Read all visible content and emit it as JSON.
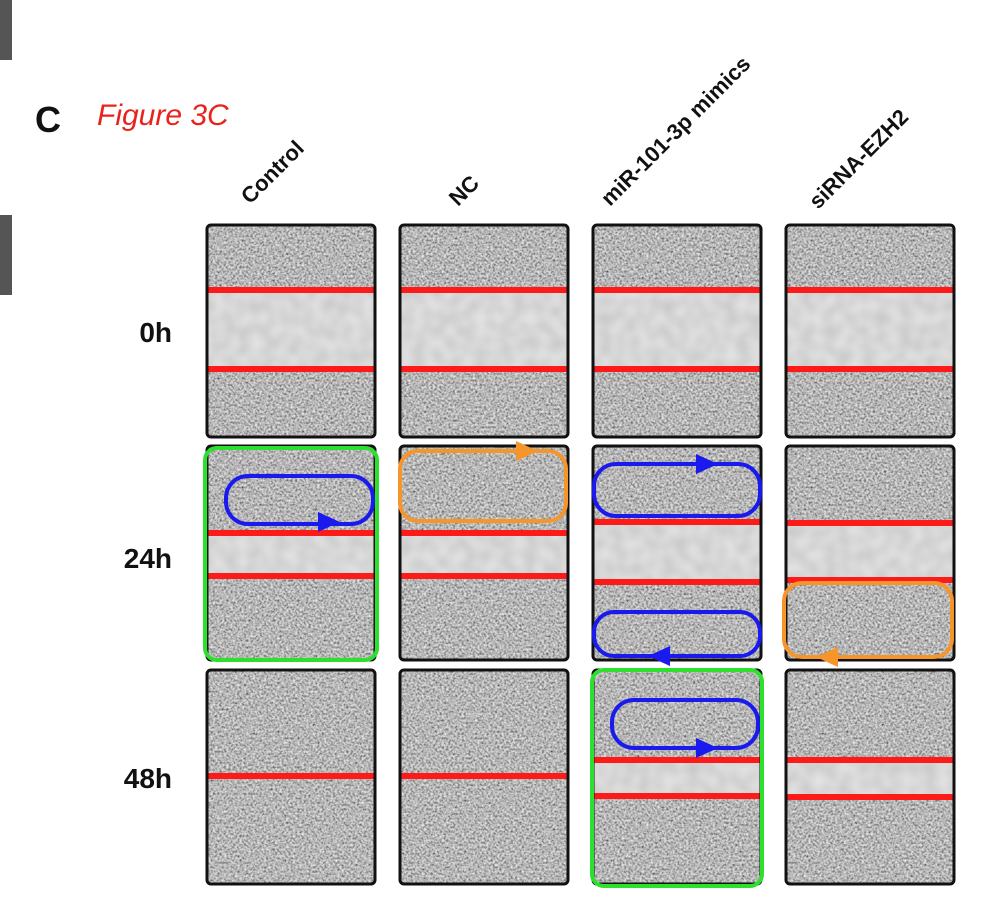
{
  "panel": {
    "letter": "C",
    "caption": "Figure 3C",
    "columns": [
      "Control",
      "NC",
      "miR-101-3p mimics",
      "siRNA-EZH2"
    ],
    "rows": [
      "0h",
      "24h",
      "48h"
    ]
  }
}
